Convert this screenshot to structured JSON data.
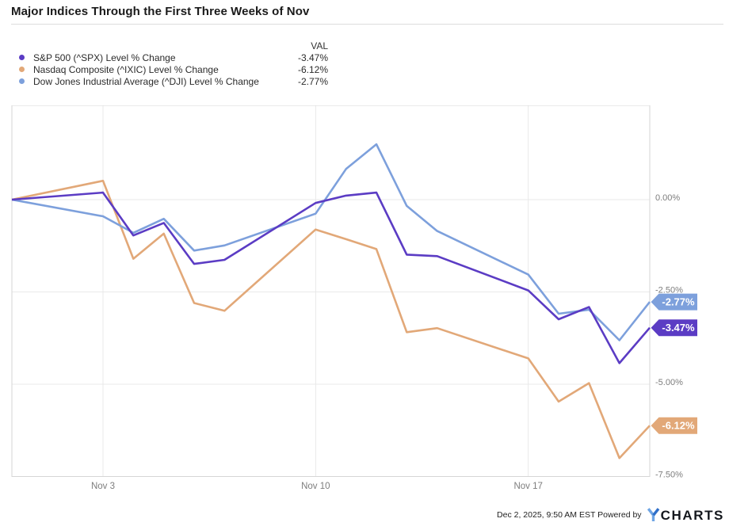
{
  "title": "Major Indices Through the First Three Weeks of Nov",
  "legend": {
    "val_header": "VAL",
    "items": [
      {
        "label": "S&P 500 (^SPX) Level % Change",
        "value": "-3.47%",
        "color": "#5b3cc4"
      },
      {
        "label": "Nasdaq Composite (^IXIC) Level % Change",
        "value": "-6.12%",
        "color": "#e2a878"
      },
      {
        "label": "Dow Jones Industrial Average (^DJI) Level % Change",
        "value": "-2.77%",
        "color": "#7da0dc"
      }
    ]
  },
  "chart_data": {
    "type": "line",
    "title": "Major Indices Through the First Three Weeks of Nov",
    "x": [
      "Oct 31",
      "Nov 3",
      "Nov 4",
      "Nov 5",
      "Nov 6",
      "Nov 7",
      "Nov 10",
      "Nov 11",
      "Nov 12",
      "Nov 13",
      "Nov 14",
      "Nov 17",
      "Nov 18",
      "Nov 19",
      "Nov 20",
      "Nov 21"
    ],
    "x_days": [
      0,
      3,
      4,
      5,
      6,
      7,
      10,
      11,
      12,
      13,
      14,
      17,
      18,
      19,
      20,
      21
    ],
    "series": [
      {
        "name": "S&P 500 (^SPX) Level % Change",
        "color": "#5b3cc4",
        "values": [
          0,
          0.19,
          -0.97,
          -0.63,
          -1.74,
          -1.63,
          -0.09,
          0.11,
          0.19,
          -1.49,
          -1.53,
          -2.46,
          -3.24,
          -2.91,
          -4.43,
          -3.47
        ],
        "end_label": "-3.47%"
      },
      {
        "name": "Nasdaq Composite (^IXIC) Level % Change",
        "color": "#e2a878",
        "values": [
          0,
          0.51,
          -1.6,
          -0.92,
          -2.8,
          -3.01,
          -0.81,
          -1.07,
          -1.34,
          -3.59,
          -3.48,
          -4.3,
          -5.47,
          -4.97,
          -7.0,
          -6.12
        ],
        "end_label": "-6.12%"
      },
      {
        "name": "Dow Jones Industrial Average (^DJI) Level % Change",
        "color": "#7da0dc",
        "values": [
          0,
          -0.45,
          -0.9,
          -0.52,
          -1.38,
          -1.24,
          -0.38,
          0.83,
          1.5,
          -0.17,
          -0.85,
          -2.03,
          -3.09,
          -2.98,
          -3.81,
          -2.77
        ],
        "end_label": "-2.77%"
      }
    ],
    "ylabel": "Level % Change",
    "ylim": [
      -7.5,
      1.75
    ],
    "y_ticks": [
      {
        "label": "0.00%",
        "value": 0
      },
      {
        "label": "-2.50%",
        "value": -2.5
      },
      {
        "label": "-5.00%",
        "value": -5
      },
      {
        "label": "-7.50%",
        "value": -7.5
      }
    ],
    "x_ticks": [
      {
        "label": "Nov 3",
        "day": 3
      },
      {
        "label": "Nov 10",
        "day": 10
      },
      {
        "label": "Nov 17",
        "day": 17
      }
    ],
    "grid": true,
    "legend_position": "top-left",
    "y_axis_side": "right"
  },
  "footer": {
    "timestamp": "Dec 2, 2025, 9:50 AM EST",
    "powered_by": "Powered by",
    "logo_text": "CHARTS"
  },
  "colors": {
    "grid": "#e9e9e9",
    "plot_border": "#d6d6d6",
    "axis_text": "#7d7d7d",
    "badge_text": "#ffffff",
    "logo_dark": "#14171d",
    "logo_blue_light": "#6fa5e4",
    "logo_blue_dark": "#2f6fc9"
  }
}
